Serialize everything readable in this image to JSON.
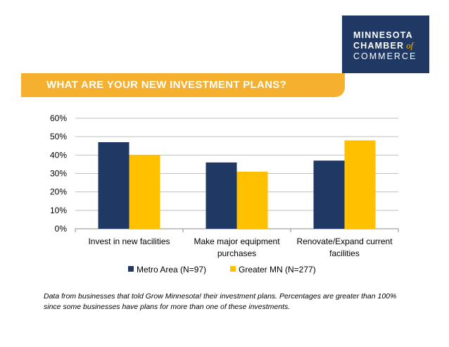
{
  "logo": {
    "line1": "MINNESOTA",
    "line2": "CHAMBER",
    "line2_suffix": "of",
    "line3": "COMMERCE"
  },
  "banner": {
    "title": "WHAT ARE YOUR NEW INVESTMENT PLANS?"
  },
  "footnote": "Data from businesses that told Grow Minnesota! their investment plans. Percentages are greater than 100% since some businesses have plans for more than one of these investments.",
  "colors": {
    "metro": "#1f3864",
    "greater": "#ffc000",
    "banner": "#f5b030",
    "grid": "#bfbfbf"
  },
  "chart_data": {
    "type": "bar",
    "title": "WHAT ARE YOUR NEW INVESTMENT PLANS?",
    "categories": [
      [
        "Invest in new facilities"
      ],
      [
        "Make major equipment",
        "purchases"
      ],
      [
        "Renovate/Expand current",
        "facilities"
      ]
    ],
    "series": [
      {
        "name": "Metro Area (N=97)",
        "values": [
          47,
          36,
          37
        ]
      },
      {
        "name": "Greater MN (N=277)",
        "values": [
          40,
          31,
          48
        ]
      }
    ],
    "yticks": [
      "0%",
      "10%",
      "20%",
      "30%",
      "40%",
      "50%",
      "60%"
    ],
    "ylim": [
      0,
      60
    ],
    "xlabel": "",
    "ylabel": "",
    "grid": true,
    "legend": "bottom"
  }
}
